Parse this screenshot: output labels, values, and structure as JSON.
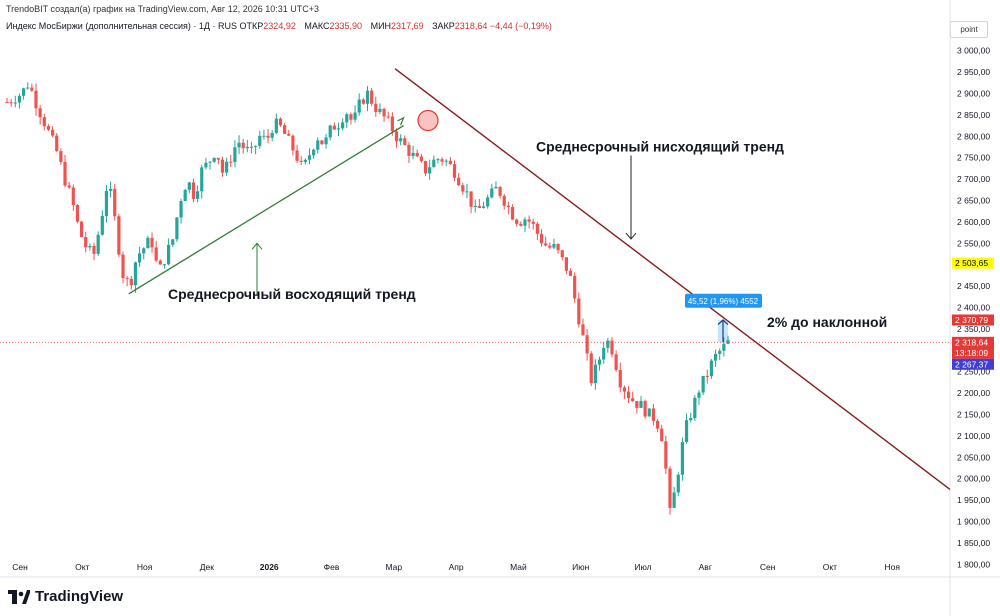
{
  "header": {
    "credit": "TrendoBIT создал(а) график на TradingView.com, Авг 12, 2026 10:31 UTC+3"
  },
  "symbol": {
    "name": "Индекс МосБиржи (дополнительная сессия) · 1Д · RUS",
    "open_label": "ОТКР",
    "open": "2324,92",
    "high_label": "МАКС",
    "high": "2335,90",
    "low_label": "МИН",
    "low": "2317,69",
    "close_label": "ЗАКР",
    "close": "2318,64 −4,44 (−0,19%)"
  },
  "unit_label": "point",
  "footer": {
    "brand": "TradingView"
  },
  "colors": {
    "up": "#26a69a",
    "down": "#ef5350",
    "uptrend": "#2e7d32",
    "downtrend": "#8b1a1a",
    "price_line": "#ef5350"
  },
  "chart_data": {
    "type": "candlestick",
    "title": "Индекс МосБиржи (дополнительная сессия)",
    "x_labels": [
      "Сен",
      "Окт",
      "Ноя",
      "Дек",
      "2026",
      "Фев",
      "Мар",
      "Апр",
      "Май",
      "Июн",
      "Июл",
      "Авг",
      "Сен",
      "Окт",
      "Ноя"
    ],
    "y_ticks": [
      "3 000,00",
      "2 950,00",
      "2 900,00",
      "2 850,00",
      "2 800,00",
      "2 750,00",
      "2 700,00",
      "2 650,00",
      "2 600,00",
      "2 550,00",
      "2 500,00",
      "2 450,00",
      "2 400,00",
      "2 350,00",
      "2 300,00",
      "2 250,00",
      "2 200,00",
      "2 150,00",
      "2 100,00",
      "2 050,00",
      "2 000,00",
      "1 950,00",
      "1 900,00",
      "1 850,00",
      "1 800,00"
    ],
    "ylim": [
      1775,
      3025
    ],
    "price_path": [
      [
        0,
        2880
      ],
      [
        2,
        2900
      ],
      [
        3,
        2925
      ],
      [
        4,
        2880
      ],
      [
        5,
        2840
      ],
      [
        7,
        2760
      ],
      [
        8,
        2700
      ],
      [
        9,
        2650
      ],
      [
        10,
        2580
      ],
      [
        11,
        2540
      ],
      [
        12,
        2520
      ],
      [
        13,
        2600
      ],
      [
        14,
        2700
      ],
      [
        15,
        2600
      ],
      [
        16,
        2480
      ],
      [
        17,
        2450
      ],
      [
        18,
        2520
      ],
      [
        19,
        2540
      ],
      [
        20,
        2560
      ],
      [
        21,
        2480
      ],
      [
        22,
        2520
      ],
      [
        23,
        2560
      ],
      [
        24,
        2650
      ],
      [
        25,
        2700
      ],
      [
        26,
        2660
      ],
      [
        27,
        2720
      ],
      [
        28,
        2740
      ],
      [
        29,
        2770
      ],
      [
        30,
        2710
      ],
      [
        31,
        2750
      ],
      [
        32,
        2790
      ],
      [
        33,
        2770
      ],
      [
        34,
        2760
      ],
      [
        35,
        2800
      ],
      [
        36,
        2790
      ],
      [
        37,
        2830
      ],
      [
        38,
        2820
      ],
      [
        39,
        2790
      ],
      [
        40,
        2760
      ],
      [
        41,
        2720
      ],
      [
        42,
        2760
      ],
      [
        43,
        2800
      ],
      [
        44,
        2780
      ],
      [
        45,
        2820
      ],
      [
        46,
        2830
      ],
      [
        47,
        2860
      ],
      [
        48,
        2830
      ],
      [
        49,
        2880
      ],
      [
        50,
        2900
      ],
      [
        51,
        2870
      ],
      [
        52,
        2850
      ],
      [
        53,
        2830
      ],
      [
        54,
        2800
      ],
      [
        55,
        2780
      ],
      [
        56,
        2760
      ],
      [
        57,
        2740
      ],
      [
        58,
        2720
      ],
      [
        59,
        2740
      ],
      [
        60,
        2750
      ],
      [
        61,
        2740
      ],
      [
        62,
        2720
      ],
      [
        63,
        2690
      ],
      [
        64,
        2660
      ],
      [
        65,
        2620
      ],
      [
        66,
        2640
      ],
      [
        67,
        2660
      ],
      [
        68,
        2680
      ],
      [
        69,
        2650
      ],
      [
        70,
        2620
      ],
      [
        71,
        2600
      ],
      [
        72,
        2610
      ],
      [
        73,
        2590
      ],
      [
        74,
        2560
      ],
      [
        75,
        2540
      ],
      [
        76,
        2540
      ],
      [
        77,
        2510
      ],
      [
        78,
        2480
      ],
      [
        79,
        2400
      ],
      [
        80,
        2320
      ],
      [
        81,
        2230
      ],
      [
        82,
        2270
      ],
      [
        83,
        2330
      ],
      [
        84,
        2300
      ],
      [
        85,
        2230
      ],
      [
        86,
        2200
      ],
      [
        87,
        2180
      ],
      [
        88,
        2170
      ],
      [
        89,
        2150
      ],
      [
        90,
        2140
      ],
      [
        91,
        2090
      ],
      [
        92,
        1910
      ],
      [
        93,
        2010
      ],
      [
        94,
        2110
      ],
      [
        95,
        2160
      ],
      [
        96,
        2210
      ],
      [
        97,
        2240
      ],
      [
        98,
        2280
      ],
      [
        99,
        2300
      ],
      [
        100,
        2318
      ]
    ],
    "current_price": 2318.64,
    "price_tags": [
      {
        "label": "2 503,65",
        "value": 2503.65,
        "bg": "#ffff00",
        "fg": "#000000"
      },
      {
        "label": "2 370,79",
        "value": 2370.79,
        "bg": "#e53935",
        "fg": "#ffffff"
      },
      {
        "label": "2 318,64",
        "label2": "13:18:09",
        "value": 2318.64,
        "bg": "#e53935",
        "fg": "#ffffff"
      },
      {
        "label": "2 267,37",
        "value": 2267.37,
        "bg": "#3f3fd6",
        "fg": "#ffffff"
      }
    ],
    "annotations": {
      "uptrend": "Среднесрочный восходящий тренд",
      "downtrend": "Среднесрочный нисходящий тренд",
      "distance": "2% до наклонной",
      "measure": "45,52 (1,96%) 4552"
    }
  }
}
